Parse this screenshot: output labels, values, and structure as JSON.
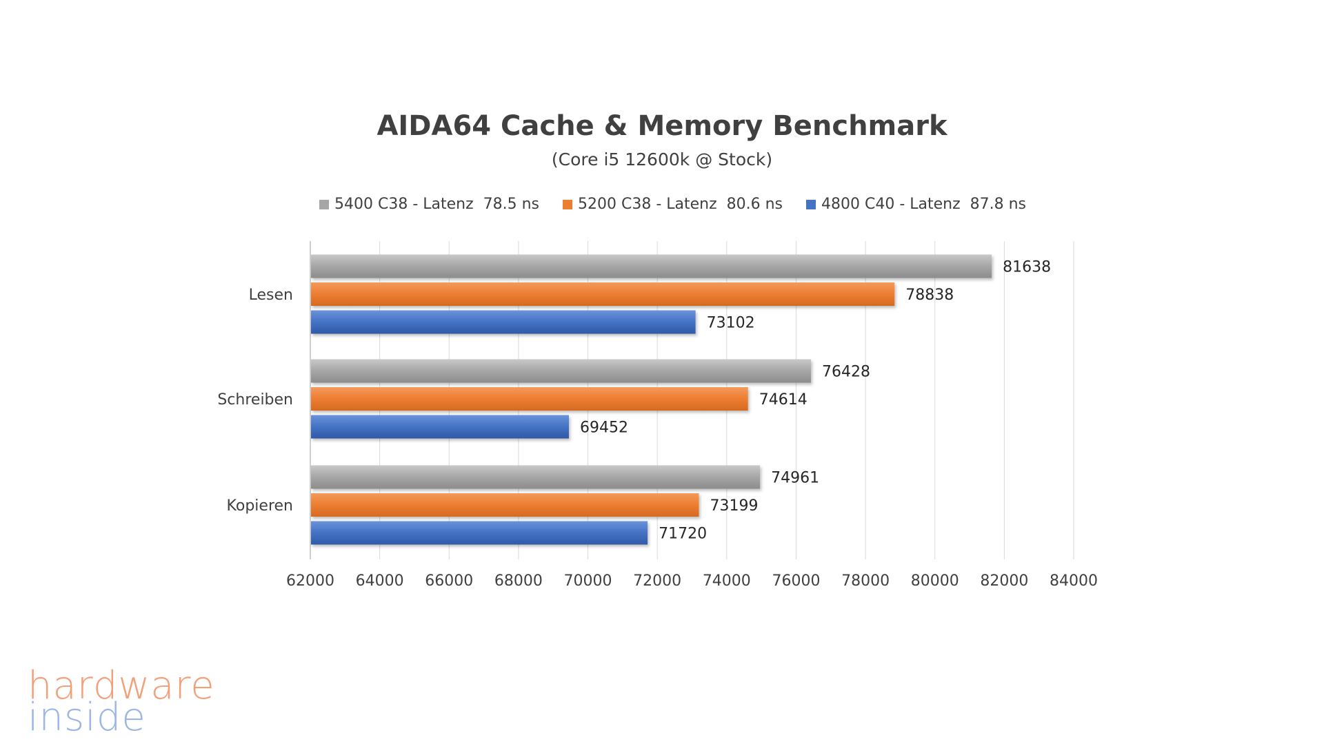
{
  "watermark": {
    "line1": "hardware",
    "line2": "inside"
  },
  "chart_data": {
    "type": "bar",
    "orientation": "horizontal",
    "title": "AIDA64 Cache & Memory Benchmark",
    "subtitle": "(Core i5 12600k @ Stock)",
    "categories": [
      "Lesen",
      "Schreiben",
      "Kopieren"
    ],
    "series": [
      {
        "name": "5400 C38 - Latenz  78.5 ns",
        "color": "#a6a6a6",
        "values": [
          81638,
          76428,
          74961
        ]
      },
      {
        "name": "5200 C38 - Latenz  80.6 ns",
        "color": "#ed7d31",
        "values": [
          78838,
          74614,
          73199
        ]
      },
      {
        "name": "4800 C40 - Latenz  87.8 ns",
        "color": "#4472c4",
        "values": [
          73102,
          69452,
          71720
        ]
      }
    ],
    "xlim": [
      62000,
      84000
    ],
    "xticks": [
      62000,
      64000,
      66000,
      68000,
      70000,
      72000,
      74000,
      76000,
      78000,
      80000,
      82000,
      84000
    ],
    "xticklabels": [
      "62000",
      "64000",
      "66000",
      "68000",
      "70000",
      "72000",
      "74000",
      "76000",
      "78000",
      "80000",
      "82000",
      "84000"
    ],
    "valuelabels": [
      [
        "81638",
        "76428",
        "74961"
      ],
      [
        "78838",
        "74614",
        "73199"
      ],
      [
        "73102",
        "69452",
        "71720"
      ]
    ],
    "xlabel": "",
    "ylabel": "",
    "grid": true,
    "legend": "top"
  }
}
